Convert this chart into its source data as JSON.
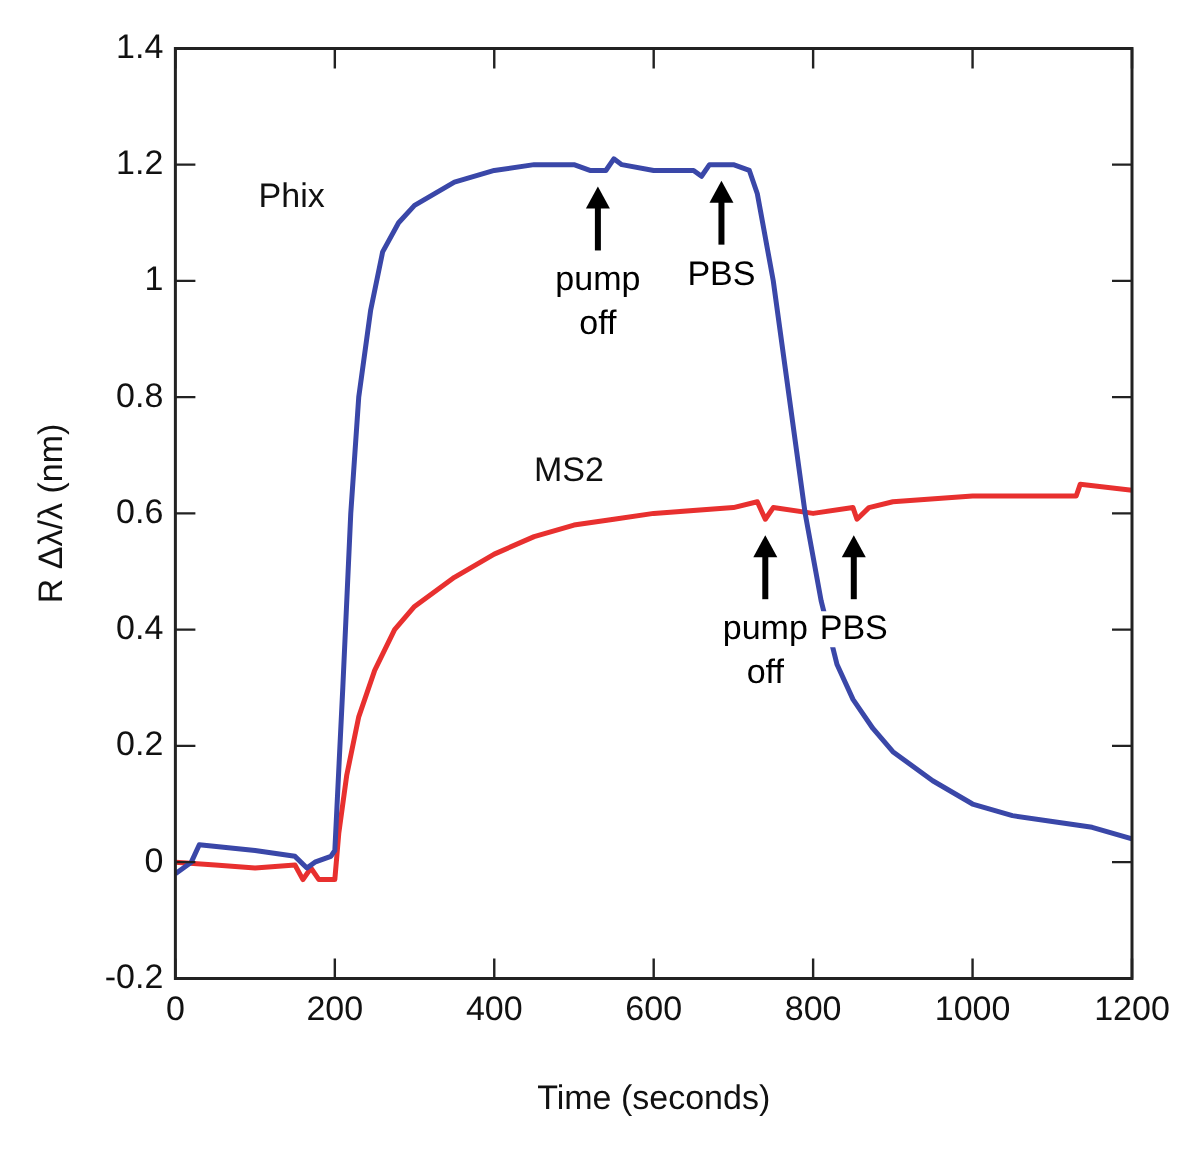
{
  "chart_data": {
    "type": "line",
    "xlabel": "Time (seconds)",
    "ylabel": "R Δλ/λ (nm)",
    "xlim": [
      0,
      1200
    ],
    "xticks": [
      0,
      200,
      400,
      600,
      800,
      1000,
      1200
    ],
    "ylim": [
      -0.2,
      1.4
    ],
    "yticks": [
      -0.2,
      0,
      0.2,
      0.4,
      0.6,
      0.8,
      1,
      1.2,
      1.4
    ],
    "grid": false,
    "legend": false,
    "marker": "none",
    "line_style": "solid",
    "series": [
      {
        "name": "Phix",
        "color": "#3a47a8",
        "x": [
          0,
          20,
          30,
          100,
          150,
          165,
          175,
          195,
          200,
          210,
          220,
          230,
          245,
          260,
          280,
          300,
          350,
          400,
          450,
          500,
          520,
          540,
          550,
          560,
          600,
          650,
          660,
          670,
          700,
          720,
          730,
          750,
          770,
          790,
          810,
          830,
          850,
          875,
          900,
          950,
          1000,
          1050,
          1100,
          1150,
          1200
        ],
        "values": [
          -0.02,
          0,
          0.03,
          0.02,
          0.01,
          -0.01,
          0,
          0.01,
          0.02,
          0.3,
          0.6,
          0.8,
          0.95,
          1.05,
          1.1,
          1.13,
          1.17,
          1.19,
          1.2,
          1.2,
          1.19,
          1.19,
          1.21,
          1.2,
          1.19,
          1.19,
          1.18,
          1.2,
          1.2,
          1.19,
          1.15,
          1,
          0.8,
          0.6,
          0.45,
          0.34,
          0.28,
          0.23,
          0.19,
          0.14,
          0.1,
          0.08,
          0.07,
          0.06,
          0.04
        ]
      },
      {
        "name": "MS2",
        "color": "#e8302f",
        "x": [
          0,
          50,
          100,
          150,
          160,
          170,
          180,
          200,
          205,
          215,
          230,
          250,
          275,
          300,
          350,
          400,
          450,
          500,
          550,
          600,
          700,
          730,
          740,
          750,
          800,
          850,
          855,
          870,
          900,
          1000,
          1100,
          1130,
          1135,
          1200
        ],
        "values": [
          0,
          -0.005,
          -0.01,
          -0.005,
          -0.03,
          -0.01,
          -0.03,
          -0.03,
          0.05,
          0.15,
          0.25,
          0.33,
          0.4,
          0.44,
          0.49,
          0.53,
          0.56,
          0.58,
          0.59,
          0.6,
          0.61,
          0.62,
          0.59,
          0.61,
          0.6,
          0.61,
          0.59,
          0.61,
          0.62,
          0.63,
          0.63,
          0.63,
          0.65,
          0.64
        ]
      }
    ],
    "annotations": [
      {
        "text": "pump off",
        "x": 530,
        "y": 1.19
      },
      {
        "text": "PBS",
        "x": 685,
        "y": 1.2
      },
      {
        "text": "pump off",
        "x": 740,
        "y": 0.59
      },
      {
        "text": "PBS",
        "x": 851,
        "y": 0.59
      }
    ]
  }
}
